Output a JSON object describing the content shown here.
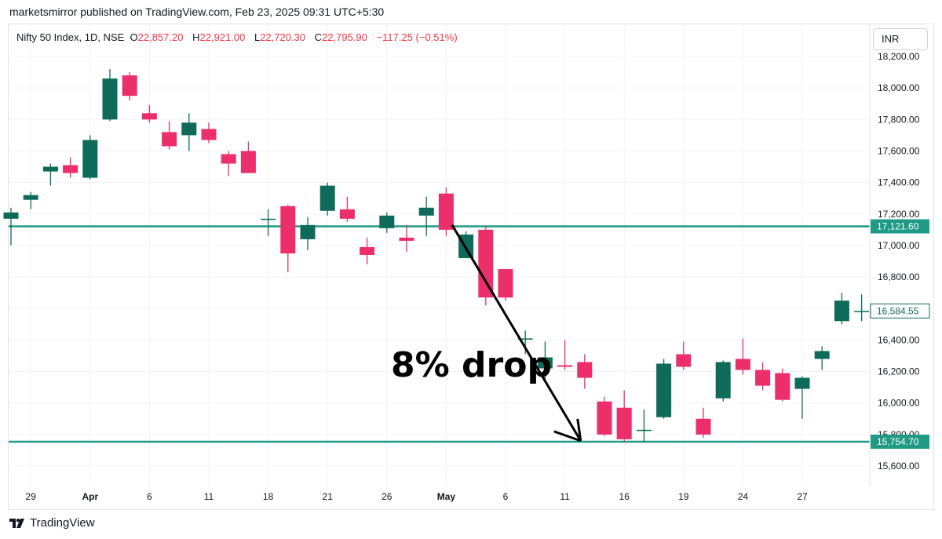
{
  "publisher_line": "marketsmirror published on TradingView.com, Feb 23, 2025 09:31 UTC+5:30",
  "legend": {
    "symbol": "Nifty 50 Index, 1D, NSE",
    "o_label": "O",
    "o_value": "22,857.20",
    "h_label": "H",
    "h_value": "22,921.00",
    "l_label": "L",
    "l_value": "22,720.30",
    "c_label": "C",
    "c_value": "22,795.90",
    "change": "−117.25 (−0.51%)"
  },
  "currency_button": "INR",
  "annotation": "8% drop",
  "footer": {
    "logo": "𝟭𝟳",
    "brand": "TradingView"
  },
  "colors": {
    "up": "#0e6b5a",
    "down": "#ec2f6a",
    "level_line": "#1e9a86",
    "grid": "#f0f3fa"
  },
  "chart_data": {
    "type": "candlestick",
    "title": "Nifty 50 Index, 1D, NSE",
    "ylim": [
      15500,
      18300
    ],
    "y_ticks": [
      "18,200.00",
      "18,000.00",
      "17,800.00",
      "17,600.00",
      "17,400.00",
      "17,200.00",
      "17,000.00",
      "16,800.00",
      "16,600.00",
      "16,400.00",
      "16,200.00",
      "16,000.00",
      "15,800.00",
      "15,600.00"
    ],
    "y_tick_values": [
      18200,
      18000,
      17800,
      17600,
      17400,
      17200,
      17000,
      16800,
      16600,
      16400,
      16200,
      16000,
      15800,
      15600
    ],
    "x_ticks": [
      {
        "label": "29",
        "index": 1,
        "bold": false
      },
      {
        "label": "Apr",
        "index": 4,
        "bold": true
      },
      {
        "label": "6",
        "index": 7,
        "bold": false
      },
      {
        "label": "11",
        "index": 10,
        "bold": false
      },
      {
        "label": "18",
        "index": 13,
        "bold": false
      },
      {
        "label": "21",
        "index": 16,
        "bold": false
      },
      {
        "label": "26",
        "index": 19,
        "bold": false
      },
      {
        "label": "May",
        "index": 22,
        "bold": true
      },
      {
        "label": "6",
        "index": 25,
        "bold": false
      },
      {
        "label": "11",
        "index": 28,
        "bold": false
      },
      {
        "label": "16",
        "index": 31,
        "bold": false
      },
      {
        "label": "19",
        "index": 34,
        "bold": false
      },
      {
        "label": "24",
        "index": 37,
        "bold": false
      },
      {
        "label": "27",
        "index": 40,
        "bold": false
      }
    ],
    "candles": [
      {
        "o": 17170,
        "h": 17240,
        "l": 17000,
        "c": 17210
      },
      {
        "o": 17290,
        "h": 17340,
        "l": 17230,
        "c": 17320
      },
      {
        "o": 17470,
        "h": 17520,
        "l": 17380,
        "c": 17500
      },
      {
        "o": 17510,
        "h": 17560,
        "l": 17430,
        "c": 17460
      },
      {
        "o": 17430,
        "h": 17700,
        "l": 17420,
        "c": 17670
      },
      {
        "o": 17800,
        "h": 18120,
        "l": 17790,
        "c": 18060
      },
      {
        "o": 18080,
        "h": 18100,
        "l": 17920,
        "c": 17950
      },
      {
        "o": 17840,
        "h": 17890,
        "l": 17780,
        "c": 17800
      },
      {
        "o": 17720,
        "h": 17790,
        "l": 17610,
        "c": 17630
      },
      {
        "o": 17700,
        "h": 17840,
        "l": 17600,
        "c": 17780
      },
      {
        "o": 17740,
        "h": 17780,
        "l": 17650,
        "c": 17670
      },
      {
        "o": 17580,
        "h": 17600,
        "l": 17440,
        "c": 17520
      },
      {
        "o": 17600,
        "h": 17660,
        "l": 17460,
        "c": 17460
      },
      {
        "o": 17170,
        "h": 17230,
        "l": 17060,
        "c": 17170
      },
      {
        "o": 17250,
        "h": 17260,
        "l": 16830,
        "c": 16950
      },
      {
        "o": 17040,
        "h": 17180,
        "l": 16970,
        "c": 17130
      },
      {
        "o": 17220,
        "h": 17400,
        "l": 17190,
        "c": 17380
      },
      {
        "o": 17230,
        "h": 17310,
        "l": 17150,
        "c": 17170
      },
      {
        "o": 16990,
        "h": 17050,
        "l": 16880,
        "c": 16940
      },
      {
        "o": 17110,
        "h": 17210,
        "l": 17080,
        "c": 17190
      },
      {
        "o": 17050,
        "h": 17130,
        "l": 16960,
        "c": 17030
      },
      {
        "o": 17190,
        "h": 17310,
        "l": 17060,
        "c": 17240
      },
      {
        "o": 17330,
        "h": 17370,
        "l": 17060,
        "c": 17100
      },
      {
        "o": 16920,
        "h": 17090,
        "l": 16920,
        "c": 17070
      },
      {
        "o": 17100,
        "h": 17120,
        "l": 16620,
        "c": 16670
      },
      {
        "o": 16850,
        "h": 16850,
        "l": 16650,
        "c": 16670
      },
      {
        "o": 16410,
        "h": 16460,
        "l": 16310,
        "c": 16410
      },
      {
        "o": 16220,
        "h": 16390,
        "l": 16140,
        "c": 16290
      },
      {
        "o": 16240,
        "h": 16400,
        "l": 16210,
        "c": 16230
      },
      {
        "o": 16260,
        "h": 16310,
        "l": 16090,
        "c": 16160
      },
      {
        "o": 16010,
        "h": 16040,
        "l": 15790,
        "c": 15800
      },
      {
        "o": 15970,
        "h": 16080,
        "l": 15750,
        "c": 15770
      },
      {
        "o": 15830,
        "h": 15960,
        "l": 15750,
        "c": 15830
      },
      {
        "o": 15910,
        "h": 16280,
        "l": 15900,
        "c": 16250
      },
      {
        "o": 16310,
        "h": 16390,
        "l": 16210,
        "c": 16230
      },
      {
        "o": 15900,
        "h": 15970,
        "l": 15780,
        "c": 15800
      },
      {
        "o": 16030,
        "h": 16270,
        "l": 16010,
        "c": 16260
      },
      {
        "o": 16280,
        "h": 16410,
        "l": 16180,
        "c": 16210
      },
      {
        "o": 16210,
        "h": 16260,
        "l": 16080,
        "c": 16110
      },
      {
        "o": 16190,
        "h": 16220,
        "l": 16010,
        "c": 16020
      },
      {
        "o": 16090,
        "h": 16170,
        "l": 15900,
        "c": 16160
      },
      {
        "o": 16280,
        "h": 16360,
        "l": 16210,
        "c": 16330
      },
      {
        "o": 16520,
        "h": 16700,
        "l": 16500,
        "c": 16650
      },
      {
        "o": 16584,
        "h": 16690,
        "l": 16520,
        "c": 16584
      }
    ],
    "levels": [
      {
        "value": 17121.6,
        "label": "17,121.60"
      },
      {
        "value": 15754.7,
        "label": "15,754.70"
      }
    ],
    "last_price": {
      "value": 16584.55,
      "label": "16,584.55"
    },
    "arrow": {
      "from": {
        "index": 22.3,
        "value": 17130
      },
      "to": {
        "index": 28.8,
        "value": 15760
      }
    }
  }
}
